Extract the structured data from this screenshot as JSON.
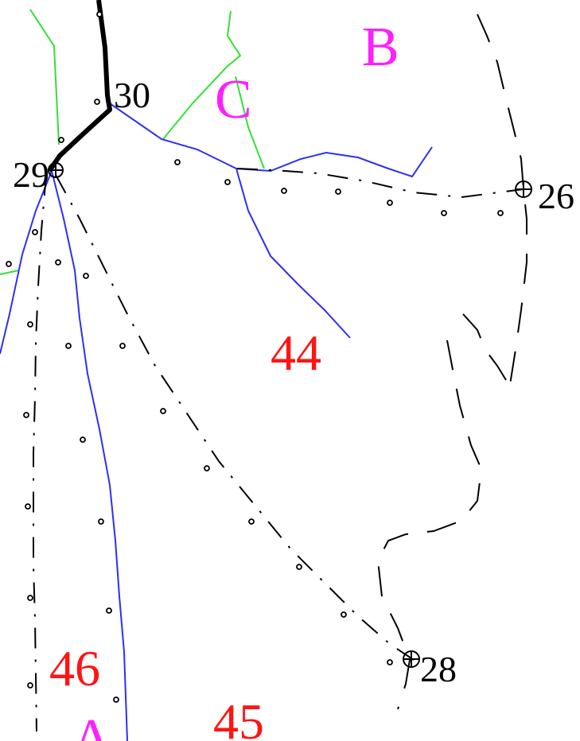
{
  "colors": {
    "blue": "#2d2ff5",
    "green": "#33e033",
    "black": "#000000",
    "red": "#ff1414",
    "magenta": "#ff1fff"
  },
  "points": {
    "p30": "30",
    "p29": "29",
    "p26": "26",
    "p28": "28"
  },
  "parcels": {
    "p44": "44",
    "p45": "45",
    "p46": "46"
  },
  "letters": {
    "b": "B",
    "c": "C",
    "a": "A"
  }
}
